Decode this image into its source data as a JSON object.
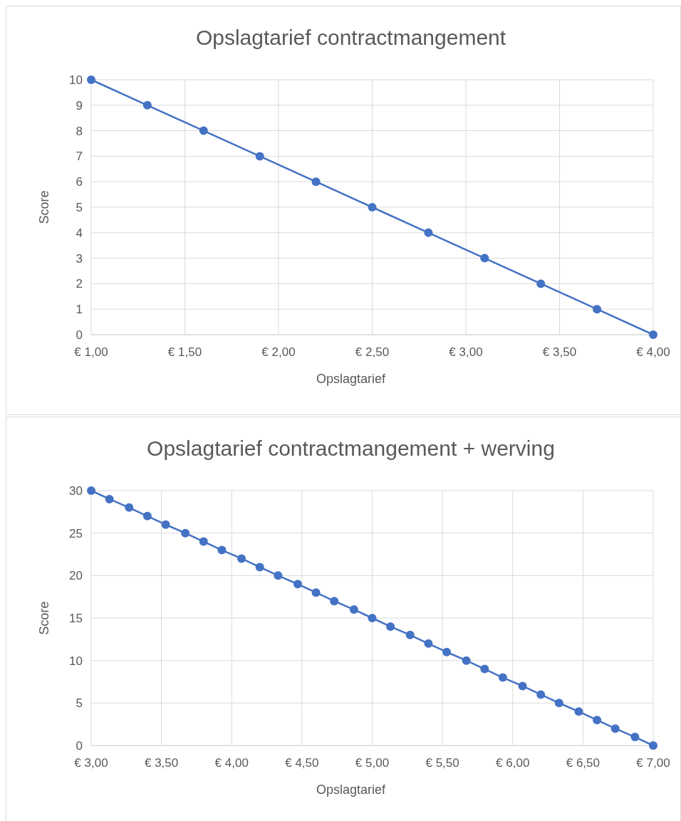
{
  "chart_data": [
    {
      "type": "line",
      "title": "Opslagtarief contractmangement",
      "xlabel": "Opslagtarief",
      "ylabel": "Score",
      "x": [
        1,
        1.3,
        1.6,
        1.9,
        2.2,
        2.5,
        2.8,
        3.1,
        3.4,
        3.7,
        4
      ],
      "series": [
        {
          "color": "#4472c4",
          "values": [
            10,
            9,
            8,
            7,
            6,
            5,
            4,
            3,
            2,
            1,
            0
          ]
        }
      ],
      "xlim": [
        1,
        4
      ],
      "ylim": [
        0,
        10
      ],
      "xticks": [
        {
          "value": 1,
          "label": "€ 1,00"
        },
        {
          "value": 1.5,
          "label": "€ 1,50"
        },
        {
          "value": 2,
          "label": "€ 2,00"
        },
        {
          "value": 2.5,
          "label": "€ 2,50"
        },
        {
          "value": 3,
          "label": "€ 3,00"
        },
        {
          "value": 3.5,
          "label": "€ 3,50"
        },
        {
          "value": 4,
          "label": "€ 4,00"
        }
      ],
      "yticks": [
        0,
        1,
        2,
        3,
        4,
        5,
        6,
        7,
        8,
        9,
        10
      ],
      "grid": true,
      "marker": "circle"
    },
    {
      "type": "line",
      "title": "Opslagtarief contractmangement + werving",
      "xlabel": "Opslagtarief",
      "ylabel": "Score",
      "x": [
        3,
        3.13,
        3.27,
        3.4,
        3.53,
        3.67,
        3.8,
        3.93,
        4.07,
        4.2,
        4.33,
        4.47,
        4.6,
        4.73,
        4.87,
        5,
        5.13,
        5.27,
        5.4,
        5.53,
        5.67,
        5.8,
        5.93,
        6.07,
        6.2,
        6.33,
        6.47,
        6.6,
        6.73,
        6.87,
        7
      ],
      "series": [
        {
          "color": "#4472c4",
          "values": [
            30,
            29,
            28,
            27,
            26,
            25,
            24,
            23,
            22,
            21,
            20,
            19,
            18,
            17,
            16,
            15,
            14,
            13,
            12,
            11,
            10,
            9,
            8,
            7,
            6,
            5,
            4,
            3,
            2,
            1,
            0
          ]
        }
      ],
      "xlim": [
        3,
        7
      ],
      "ylim": [
        0,
        30
      ],
      "xticks": [
        {
          "value": 3,
          "label": "€ 3,00"
        },
        {
          "value": 3.5,
          "label": "€ 3,50"
        },
        {
          "value": 4,
          "label": "€ 4,00"
        },
        {
          "value": 4.5,
          "label": "€ 4,50"
        },
        {
          "value": 5,
          "label": "€ 5,00"
        },
        {
          "value": 5.5,
          "label": "€ 5,50"
        },
        {
          "value": 6,
          "label": "€ 6,00"
        },
        {
          "value": 6.5,
          "label": "€ 6,50"
        },
        {
          "value": 7,
          "label": "€ 7,00"
        }
      ],
      "yticks": [
        0,
        5,
        10,
        15,
        20,
        25,
        30
      ],
      "grid": true,
      "marker": "circle"
    }
  ]
}
